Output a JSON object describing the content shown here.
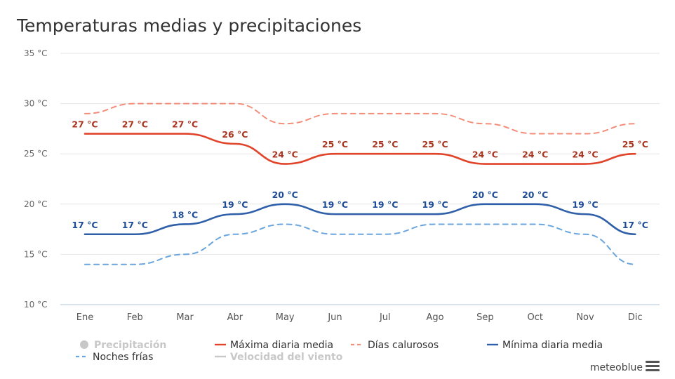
{
  "chart_data": {
    "type": "line",
    "title": "Temperaturas medias y precipitaciones",
    "categories": [
      "Ene",
      "Feb",
      "Mar",
      "Abr",
      "May",
      "Jun",
      "Jul",
      "Ago",
      "Sep",
      "Oct",
      "Nov",
      "Dic"
    ],
    "ylim": [
      10,
      35
    ],
    "yticks": [
      {
        "value": 10,
        "label": "10 °C"
      },
      {
        "value": 15,
        "label": "15 °C"
      },
      {
        "value": 20,
        "label": "20 °C"
      },
      {
        "value": 25,
        "label": "25 °C"
      },
      {
        "value": 30,
        "label": "30 °C"
      },
      {
        "value": 35,
        "label": "35 °C"
      }
    ],
    "series": [
      {
        "name": "Máxima diaria media",
        "color": "#e0452b",
        "style": "solid",
        "values": [
          27,
          27,
          27,
          26,
          24,
          25,
          25,
          25,
          24,
          24,
          24,
          25
        ],
        "labels": true,
        "label_color": "#a8341f"
      },
      {
        "name": "Días calurosos",
        "color": "#f28e7a",
        "style": "dashed",
        "values": [
          29,
          30,
          30,
          30,
          28,
          29,
          29,
          29,
          28,
          27,
          27,
          28
        ],
        "labels": false
      },
      {
        "name": "Mínima diaria media",
        "color": "#2e5fa8",
        "style": "solid",
        "values": [
          17,
          17,
          18,
          19,
          20,
          19,
          19,
          19,
          20,
          20,
          19,
          17
        ],
        "labels": true,
        "label_color": "#1e4c96"
      },
      {
        "name": "Noches frías",
        "color": "#6aa5dd",
        "style": "dashed",
        "values": [
          14,
          14,
          15,
          17,
          18,
          17,
          17,
          18,
          18,
          18,
          17,
          14
        ],
        "labels": false
      }
    ],
    "data_labels_unit": " °C",
    "legend": [
      {
        "name": "Precipitación",
        "color": "#c8c8c8",
        "symbol": "circle",
        "hidden": true
      },
      {
        "name": "Máxima diaria media",
        "color": "#e0452b",
        "symbol": "line",
        "hidden": false
      },
      {
        "name": "Días calurosos",
        "color": "#f28e7a",
        "symbol": "dash",
        "hidden": false
      },
      {
        "name": "Mínima diaria media",
        "color": "#2e5fa8",
        "symbol": "line",
        "hidden": false
      },
      {
        "name": "Noches frías",
        "color": "#6aa5dd",
        "symbol": "dash",
        "hidden": false
      },
      {
        "name": "Velocidad del viento",
        "color": "#c8c8c8",
        "symbol": "line",
        "hidden": true
      }
    ],
    "legend_position": "bottom",
    "grid": true
  },
  "branding": {
    "text": "meteoblue"
  },
  "colors": {
    "grid": "#e6e6e6",
    "axis": "#c0d0e0",
    "hidden_legend": "#c8c8c8",
    "legend_text": "#333333"
  }
}
